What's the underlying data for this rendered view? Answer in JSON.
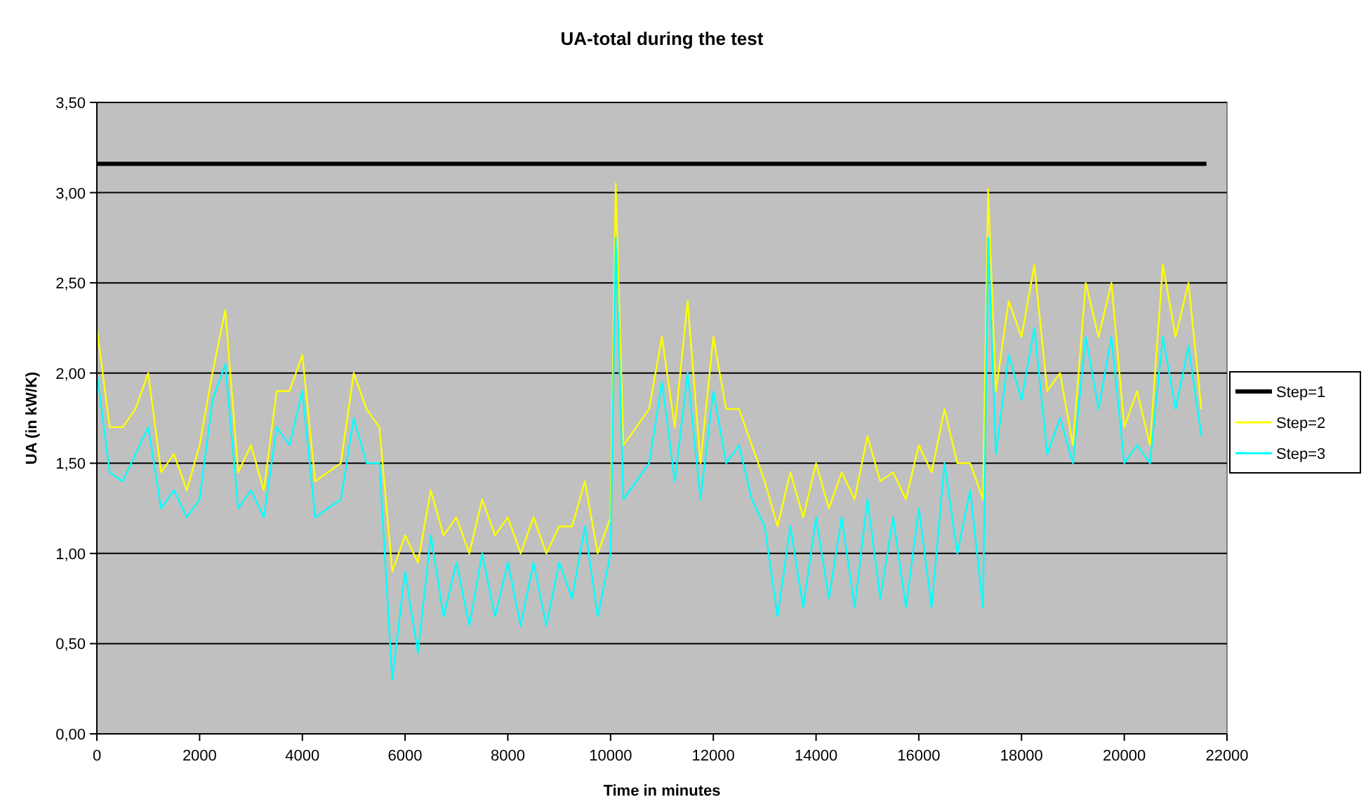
{
  "chart_data": {
    "type": "line",
    "title": "UA-total during the test",
    "xlabel": "Time in minutes",
    "ylabel": "UA (in kW/K)",
    "xlim": [
      0,
      22000
    ],
    "xticks": [
      0,
      2000,
      4000,
      6000,
      8000,
      10000,
      12000,
      14000,
      16000,
      18000,
      20000,
      22000
    ],
    "ylim": [
      0,
      3.5
    ],
    "yticks": [
      {
        "value": 0,
        "label": "0,00"
      },
      {
        "value": 0.5,
        "label": "0,50"
      },
      {
        "value": 1,
        "label": "1,00"
      },
      {
        "value": 1.5,
        "label": "1,50"
      },
      {
        "value": 2,
        "label": "2,00"
      },
      {
        "value": 2.5,
        "label": "2,50"
      },
      {
        "value": 3,
        "label": "3,00"
      },
      {
        "value": 3.5,
        "label": "3,50"
      }
    ],
    "grid": "y",
    "legend": "right",
    "marker": "none",
    "line_style": "solid",
    "x": [
      0,
      250,
      500,
      750,
      1000,
      1250,
      1500,
      1750,
      2000,
      2250,
      2500,
      2750,
      3000,
      3250,
      3500,
      3750,
      4000,
      4250,
      4500,
      4750,
      5000,
      5250,
      5500,
      5750,
      6000,
      6250,
      6500,
      6750,
      7000,
      7250,
      7500,
      7750,
      8000,
      8250,
      8500,
      8750,
      9000,
      9250,
      9500,
      9750,
      10000,
      10100,
      10250,
      10500,
      10750,
      11000,
      11250,
      11500,
      11750,
      12000,
      12250,
      12500,
      12750,
      13000,
      13250,
      13500,
      13750,
      14000,
      14250,
      14500,
      14750,
      15000,
      15250,
      15500,
      15750,
      16000,
      16250,
      16500,
      16750,
      17000,
      17250,
      17350,
      17500,
      17750,
      18000,
      18250,
      18500,
      18750,
      19000,
      19250,
      19500,
      19750,
      20000,
      20250,
      20500,
      20750,
      21000,
      21250,
      21500
    ],
    "series": [
      {
        "name": "Step=1",
        "color": "#000000",
        "x": [
          0,
          21600
        ],
        "values": [
          3.16,
          3.16
        ]
      },
      {
        "name": "Step=2",
        "color": "#ffff00",
        "values": [
          2.25,
          1.7,
          1.7,
          1.8,
          2.0,
          1.45,
          1.55,
          1.35,
          1.6,
          2.0,
          2.35,
          1.45,
          1.6,
          1.35,
          1.9,
          1.9,
          2.1,
          1.4,
          1.45,
          1.5,
          2.0,
          1.8,
          1.7,
          0.9,
          1.1,
          0.95,
          1.35,
          1.1,
          1.2,
          1.0,
          1.3,
          1.1,
          1.2,
          1.0,
          1.2,
          1.0,
          1.15,
          1.15,
          1.4,
          1.0,
          1.2,
          3.05,
          1.6,
          1.7,
          1.8,
          2.2,
          1.7,
          2.4,
          1.5,
          2.2,
          1.8,
          1.8,
          1.6,
          1.4,
          1.15,
          1.45,
          1.2,
          1.5,
          1.25,
          1.45,
          1.3,
          1.65,
          1.4,
          1.45,
          1.3,
          1.6,
          1.45,
          1.8,
          1.5,
          1.5,
          1.3,
          3.02,
          1.9,
          2.4,
          2.2,
          2.6,
          1.9,
          2.0,
          1.6,
          2.5,
          2.2,
          2.5,
          1.7,
          1.9,
          1.6,
          2.6,
          2.2,
          2.5,
          1.8
        ]
      },
      {
        "name": "Step=3",
        "color": "#00ffff",
        "values": [
          2.0,
          1.45,
          1.4,
          1.55,
          1.7,
          1.25,
          1.35,
          1.2,
          1.3,
          1.85,
          2.05,
          1.25,
          1.35,
          1.2,
          1.7,
          1.6,
          1.9,
          1.2,
          1.25,
          1.3,
          1.75,
          1.5,
          1.5,
          0.3,
          0.9,
          0.45,
          1.1,
          0.65,
          0.95,
          0.6,
          1.0,
          0.65,
          0.95,
          0.6,
          0.95,
          0.6,
          0.95,
          0.75,
          1.15,
          0.65,
          1.0,
          2.75,
          1.3,
          1.4,
          1.5,
          1.95,
          1.4,
          2.0,
          1.3,
          1.9,
          1.5,
          1.6,
          1.3,
          1.15,
          0.65,
          1.15,
          0.7,
          1.2,
          0.75,
          1.2,
          0.7,
          1.3,
          0.75,
          1.2,
          0.7,
          1.25,
          0.7,
          1.5,
          1.0,
          1.35,
          0.7,
          2.75,
          1.55,
          2.1,
          1.85,
          2.25,
          1.55,
          1.75,
          1.5,
          2.2,
          1.8,
          2.2,
          1.5,
          1.6,
          1.5,
          2.2,
          1.8,
          2.15,
          1.65
        ]
      }
    ]
  }
}
